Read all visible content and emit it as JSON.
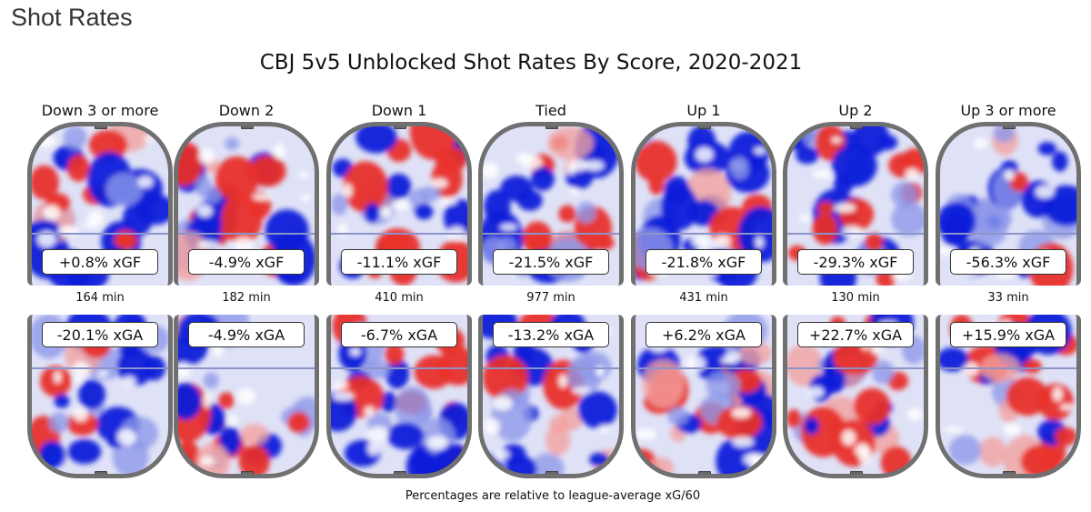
{
  "page": {
    "heading": "Shot Rates"
  },
  "chart_data": {
    "type": "heatmap",
    "title": "CBJ 5v5 Unblocked Shot Rates By Score, 2020-2021",
    "footnote": "Percentages are relative to league-average xG/60",
    "colors": {
      "above_average": "#e8302a",
      "below_average": "#0a1fd9",
      "rink_border": "#707070"
    },
    "panels": [
      {
        "state": "Down 3 or more",
        "xgf": "+0.8% xGF",
        "minutes": "164 min",
        "xga": "-20.1% xGA",
        "xgf_pct": 0.8,
        "xga_pct": -20.1,
        "toi_min": 164
      },
      {
        "state": "Down 2",
        "xgf": "-4.9% xGF",
        "minutes": "182 min",
        "xga": "-4.9% xGA",
        "xgf_pct": -4.9,
        "xga_pct": -4.9,
        "toi_min": 182
      },
      {
        "state": "Down 1",
        "xgf": "-11.1% xGF",
        "minutes": "410 min",
        "xga": "-6.7% xGA",
        "xgf_pct": -11.1,
        "xga_pct": -6.7,
        "toi_min": 410
      },
      {
        "state": "Tied",
        "xgf": "-21.5% xGF",
        "minutes": "977 min",
        "xga": "-13.2% xGA",
        "xgf_pct": -21.5,
        "xga_pct": -13.2,
        "toi_min": 977
      },
      {
        "state": "Up 1",
        "xgf": "-21.8% xGF",
        "minutes": "431 min",
        "xga": "+6.2% xGA",
        "xgf_pct": -21.8,
        "xga_pct": 6.2,
        "toi_min": 431
      },
      {
        "state": "Up 2",
        "xgf": "-29.3% xGF",
        "minutes": "130 min",
        "xga": "+22.7% xGA",
        "xgf_pct": -29.3,
        "xga_pct": 22.7,
        "toi_min": 130
      },
      {
        "state": "Up 3 or more",
        "xgf": "-56.3% xGF",
        "minutes": "33 min",
        "xga": "+15.9% xGA",
        "xgf_pct": -56.3,
        "xga_pct": 15.9,
        "toi_min": 33
      }
    ]
  }
}
